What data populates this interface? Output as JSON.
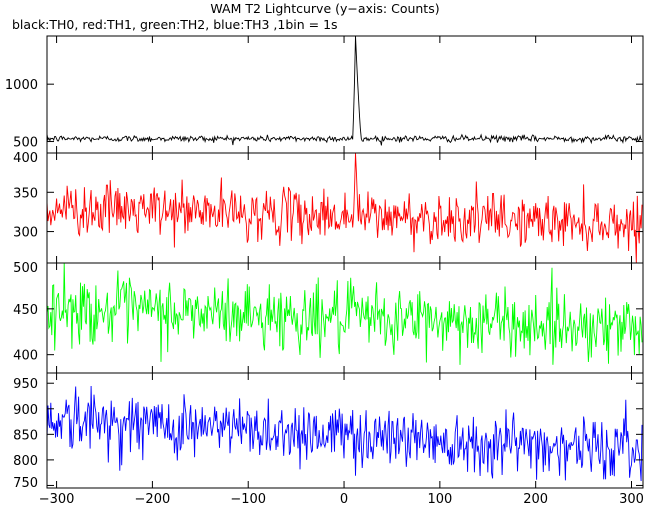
{
  "chart_data": {
    "type": "line",
    "title": "WAM T2 Lightcurve (y−axis: Counts)",
    "subtitle": "black:TH0, red:TH1, green:TH2, blue:TH3 ,1bin = 1s",
    "x": {
      "range": [
        -310,
        312
      ],
      "ticks": [
        -300,
        -200,
        -100,
        0,
        100,
        200,
        300
      ],
      "labels": [
        "−300",
        "−200",
        "−100",
        "0",
        "100",
        "200",
        "300"
      ]
    },
    "grid": false,
    "panels": [
      {
        "series": "TH0",
        "color": "#000000",
        "ylim": [
          400,
          1420
        ],
        "yticks": [
          500,
          1000
        ],
        "ylabels": [
          "500",
          "1000"
        ],
        "baseline": 525,
        "noise": 14,
        "burst": {
          "peak_x": 12,
          "peak_value": 1420,
          "rise_start": 9,
          "decay_end": 18
        }
      },
      {
        "series": "TH1",
        "color": "#ff0000",
        "ylim": [
          260,
          400
        ],
        "yticks": [
          300,
          350,
          400
        ],
        "ylabels": [
          "300",
          "350",
          "400"
        ],
        "start_level": 330,
        "end_level": 310,
        "noise": 16,
        "burst": {
          "peak_x": 12,
          "peak_value": 405,
          "rise_start": 10,
          "decay_end": 15
        }
      },
      {
        "series": "TH2",
        "color": "#00ff00",
        "ylim": [
          380,
          500
        ],
        "yticks": [
          400,
          450,
          500
        ],
        "ylabels": [
          "400",
          "450",
          "500"
        ],
        "start_level": 450,
        "end_level": 430,
        "noise": 18
      },
      {
        "series": "TH3",
        "color": "#0000ff",
        "ylim": [
          745,
          970
        ],
        "yticks": [
          750,
          800,
          850,
          900,
          950
        ],
        "ylabels": [
          "750",
          "800",
          "850",
          "900",
          "950"
        ],
        "start_level": 880,
        "end_level": 820,
        "noise": 30
      }
    ]
  }
}
